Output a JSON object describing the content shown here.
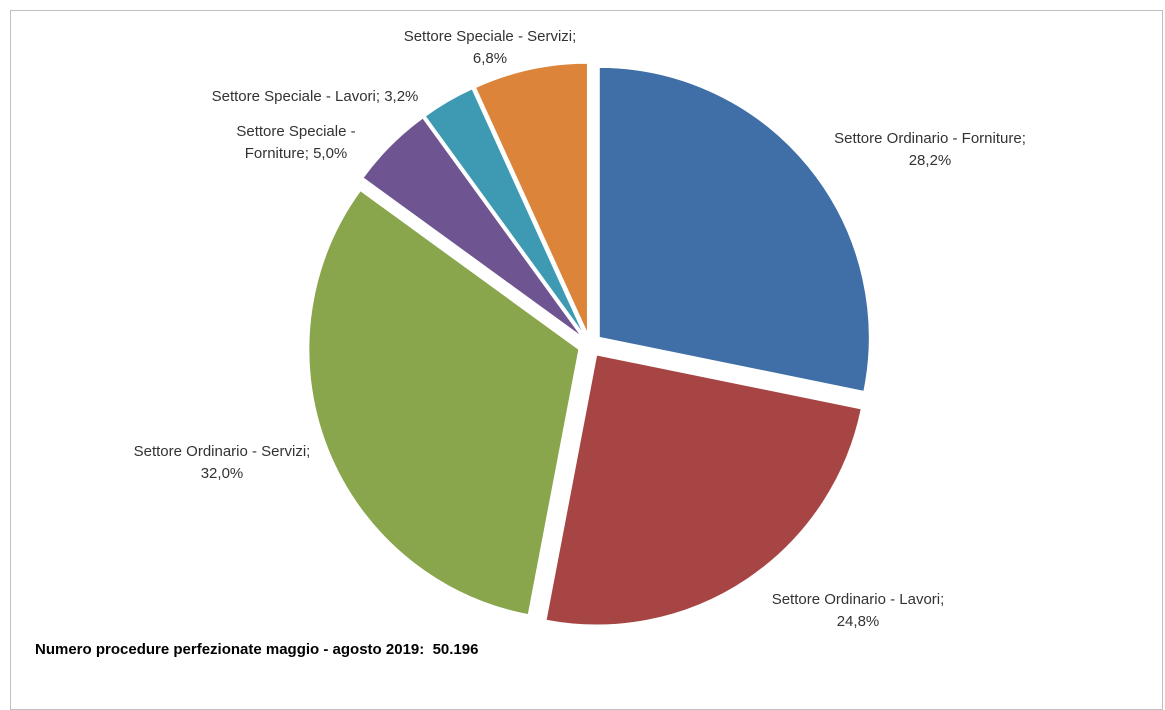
{
  "chart_data": {
    "type": "pie",
    "slices": [
      {
        "label": "Settore Ordinario - Forniture",
        "value": 28.2,
        "display": "28,2%",
        "color": "#3F6FA6"
      },
      {
        "label": "Settore Ordinario - Lavori",
        "value": 24.8,
        "display": "24,8%",
        "color": "#A64543"
      },
      {
        "label": "Settore Ordinario - Servizi",
        "value": 32.0,
        "display": "32,0%",
        "color": "#89A64C"
      },
      {
        "label": "Settore Speciale - Forniture",
        "value": 5.0,
        "display": "5,0%",
        "color": "#6E5490"
      },
      {
        "label": "Settore Speciale - Lavori",
        "value": 3.2,
        "display": "3,2%",
        "color": "#3E9AB2"
      },
      {
        "label": "Settore Speciale - Servizi",
        "value": 6.8,
        "display": "6,8%",
        "color": "#DC8439"
      }
    ],
    "labels_text": [
      [
        "Settore Ordinario - Forniture;",
        "28,2%"
      ],
      [
        "Settore Ordinario - Lavori;",
        "24,8%"
      ],
      [
        "Settore Ordinario - Servizi;",
        "32,0%"
      ],
      [
        "Settore Speciale -",
        "Forniture; 5,0%"
      ],
      [
        "Settore Speciale - Lavori; 3,2%"
      ],
      [
        "Settore Speciale - Servizi;",
        "6,8%"
      ]
    ],
    "legend": "none",
    "exploded": true
  },
  "footnote": "Numero procedure perfezionate maggio - agosto 2019:  50.196"
}
